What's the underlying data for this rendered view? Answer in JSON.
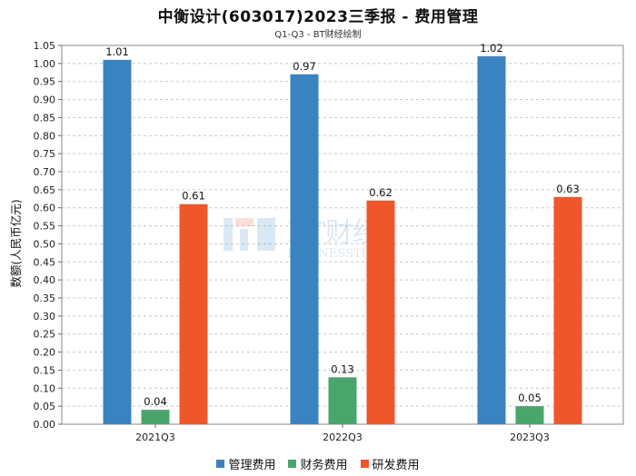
{
  "header": {
    "title": "中衡设计(603017)2023三季报 - 费用管理",
    "subtitle": "Q1-Q3 - BT财经绘制"
  },
  "watermark": {
    "main": "BT财经",
    "sub": "BUSINESSTIMES"
  },
  "chart_data": {
    "type": "bar",
    "title": "中衡设计(603017)2023三季报 - 费用管理",
    "subtitle": "Q1-Q3 - BT财经绘制",
    "xlabel": "",
    "ylabel": "数额(人民币亿元)",
    "categories": [
      "2021Q3",
      "2022Q3",
      "2023Q3"
    ],
    "ylim": [
      0,
      1.05
    ],
    "ytick_step": 0.05,
    "grid": true,
    "legend_position": "bottom",
    "series": [
      {
        "name": "管理费用",
        "color": "#3a83c1",
        "values": [
          1.01,
          0.97,
          1.02
        ]
      },
      {
        "name": "财务费用",
        "color": "#48a56c",
        "values": [
          0.04,
          0.13,
          0.05
        ]
      },
      {
        "name": "研发费用",
        "color": "#f0562b",
        "values": [
          0.61,
          0.62,
          0.63
        ]
      }
    ]
  }
}
